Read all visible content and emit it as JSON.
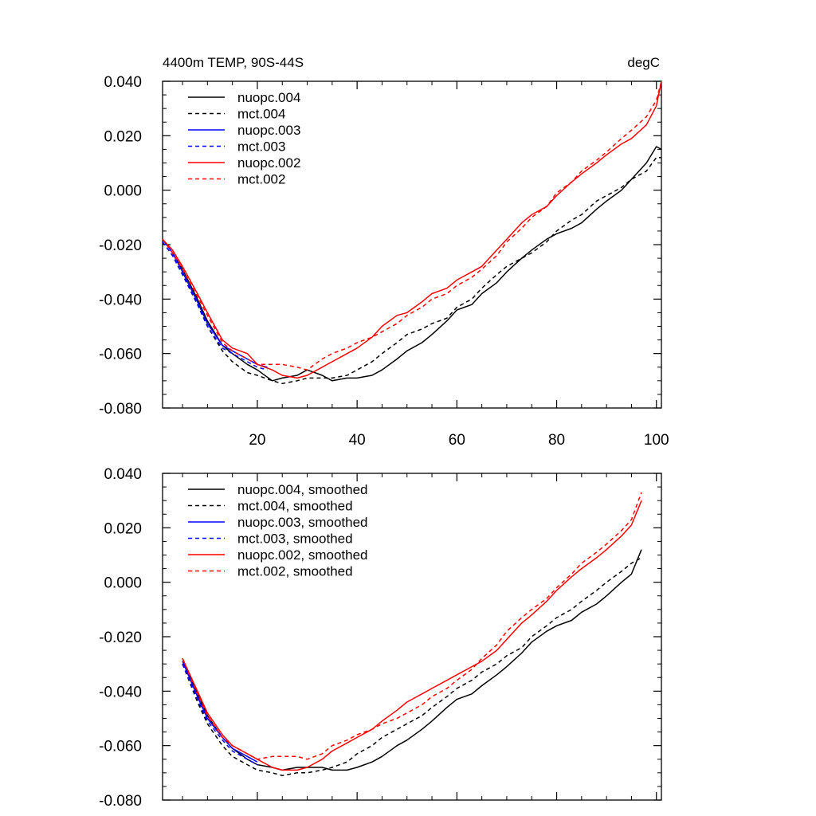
{
  "title_left": "4400m TEMP, 90S-44S",
  "title_right": "degC",
  "y_ticks": [
    "0.040",
    "0.020",
    "0.000",
    "-0.020",
    "-0.040",
    "-0.060",
    "-0.080"
  ],
  "x_ticks": [
    "20",
    "40",
    "60",
    "80",
    "100"
  ],
  "chart_data": [
    {
      "type": "line",
      "title": "4400m TEMP, 90S-44S",
      "unit": "degC",
      "xlim": [
        1,
        101
      ],
      "ylim": [
        -0.08,
        0.04
      ],
      "legend_position": "top-left",
      "series": [
        {
          "name": "nuopc.004",
          "color": "#000000",
          "dash": "solid",
          "x": [
            1,
            3,
            5,
            8,
            10,
            13,
            15,
            18,
            20,
            23,
            25,
            28,
            30,
            33,
            35,
            38,
            40,
            43,
            45,
            48,
            50,
            53,
            55,
            58,
            60,
            63,
            65,
            68,
            70,
            73,
            75,
            78,
            80,
            83,
            85,
            88,
            90,
            93,
            95,
            98,
            100,
            101
          ],
          "y": [
            -0.018,
            -0.023,
            -0.029,
            -0.04,
            -0.048,
            -0.057,
            -0.06,
            -0.064,
            -0.066,
            -0.07,
            -0.069,
            -0.068,
            -0.066,
            -0.068,
            -0.07,
            -0.069,
            -0.069,
            -0.068,
            -0.066,
            -0.062,
            -0.059,
            -0.056,
            -0.053,
            -0.048,
            -0.044,
            -0.042,
            -0.038,
            -0.034,
            -0.03,
            -0.025,
            -0.022,
            -0.018,
            -0.016,
            -0.014,
            -0.012,
            -0.007,
            -0.004,
            0.0,
            0.004,
            0.01,
            0.016,
            0.015
          ]
        },
        {
          "name": "mct.004",
          "color": "#000000",
          "dash": "dashed",
          "x": [
            1,
            3,
            5,
            8,
            10,
            13,
            15,
            18,
            20,
            23,
            25,
            28,
            30,
            33,
            35,
            38,
            40,
            43,
            45,
            48,
            50,
            53,
            55,
            58,
            60,
            63,
            65,
            68,
            70,
            73,
            75,
            78,
            80,
            83,
            85,
            88,
            90,
            93,
            95,
            98,
            100,
            101
          ],
          "y": [
            -0.019,
            -0.024,
            -0.031,
            -0.042,
            -0.05,
            -0.059,
            -0.063,
            -0.067,
            -0.068,
            -0.07,
            -0.071,
            -0.07,
            -0.069,
            -0.069,
            -0.069,
            -0.068,
            -0.066,
            -0.063,
            -0.06,
            -0.056,
            -0.053,
            -0.051,
            -0.049,
            -0.047,
            -0.043,
            -0.04,
            -0.036,
            -0.031,
            -0.028,
            -0.025,
            -0.023,
            -0.019,
            -0.015,
            -0.011,
            -0.009,
            -0.004,
            -0.002,
            0.001,
            0.004,
            0.007,
            0.012,
            0.012
          ]
        },
        {
          "name": "nuopc.003",
          "color": "#0000ff",
          "dash": "solid",
          "x": [
            1,
            3,
            5,
            8,
            10,
            13,
            15,
            18,
            20,
            22
          ],
          "y": [
            -0.018,
            -0.023,
            -0.03,
            -0.041,
            -0.049,
            -0.057,
            -0.059,
            -0.062,
            -0.064,
            -0.065
          ]
        },
        {
          "name": "mct.003",
          "color": "#0000ff",
          "dash": "dashed",
          "x": [
            1,
            3,
            5,
            8,
            10,
            13,
            15,
            18,
            20,
            22
          ],
          "y": [
            -0.019,
            -0.024,
            -0.031,
            -0.042,
            -0.05,
            -0.058,
            -0.06,
            -0.063,
            -0.065,
            -0.066
          ]
        },
        {
          "name": "nuopc.002",
          "color": "#ff0000",
          "dash": "solid",
          "x": [
            1,
            3,
            5,
            8,
            10,
            13,
            15,
            18,
            20,
            23,
            25,
            28,
            30,
            33,
            35,
            38,
            40,
            43,
            45,
            48,
            50,
            53,
            55,
            58,
            60,
            63,
            65,
            68,
            70,
            73,
            75,
            78,
            80,
            83,
            85,
            88,
            90,
            93,
            95,
            98,
            100,
            101
          ],
          "y": [
            -0.018,
            -0.022,
            -0.028,
            -0.038,
            -0.045,
            -0.055,
            -0.058,
            -0.06,
            -0.064,
            -0.066,
            -0.068,
            -0.069,
            -0.068,
            -0.065,
            -0.063,
            -0.06,
            -0.058,
            -0.054,
            -0.05,
            -0.046,
            -0.045,
            -0.041,
            -0.038,
            -0.036,
            -0.033,
            -0.03,
            -0.028,
            -0.022,
            -0.018,
            -0.012,
            -0.009,
            -0.006,
            -0.002,
            0.003,
            0.006,
            0.01,
            0.013,
            0.017,
            0.019,
            0.024,
            0.031,
            0.04
          ]
        },
        {
          "name": "mct.002",
          "color": "#ff0000",
          "dash": "dashed",
          "x": [
            1,
            3,
            5,
            8,
            10,
            13,
            15,
            18,
            20,
            23,
            25,
            28,
            30,
            33,
            35,
            38,
            40,
            43,
            45,
            48,
            50,
            53,
            55,
            58,
            60,
            63,
            65,
            68,
            70,
            73,
            75,
            78,
            80,
            83,
            85,
            88,
            90,
            93,
            95,
            98,
            100,
            101
          ],
          "y": [
            -0.018,
            -0.023,
            -0.029,
            -0.039,
            -0.046,
            -0.056,
            -0.059,
            -0.062,
            -0.064,
            -0.064,
            -0.064,
            -0.065,
            -0.066,
            -0.062,
            -0.06,
            -0.058,
            -0.056,
            -0.054,
            -0.052,
            -0.049,
            -0.046,
            -0.043,
            -0.04,
            -0.038,
            -0.035,
            -0.032,
            -0.029,
            -0.024,
            -0.019,
            -0.014,
            -0.01,
            -0.006,
            -0.001,
            0.003,
            0.007,
            0.011,
            0.014,
            0.019,
            0.022,
            0.027,
            0.033,
            0.04
          ]
        }
      ]
    },
    {
      "type": "line",
      "xlim": [
        1,
        101
      ],
      "ylim": [
        -0.08,
        0.04
      ],
      "legend_position": "top-left",
      "series": [
        {
          "name": "nuopc.004, smoothed",
          "color": "#000000",
          "dash": "solid",
          "x": [
            5,
            8,
            10,
            13,
            15,
            18,
            20,
            23,
            25,
            28,
            30,
            33,
            35,
            38,
            40,
            43,
            45,
            48,
            50,
            53,
            55,
            58,
            60,
            63,
            65,
            68,
            70,
            73,
            75,
            78,
            80,
            83,
            85,
            88,
            90,
            93,
            95,
            97
          ],
          "y": [
            -0.028,
            -0.041,
            -0.049,
            -0.057,
            -0.061,
            -0.065,
            -0.067,
            -0.068,
            -0.069,
            -0.068,
            -0.068,
            -0.068,
            -0.069,
            -0.069,
            -0.068,
            -0.066,
            -0.064,
            -0.06,
            -0.058,
            -0.054,
            -0.051,
            -0.046,
            -0.043,
            -0.041,
            -0.038,
            -0.034,
            -0.031,
            -0.026,
            -0.022,
            -0.018,
            -0.016,
            -0.014,
            -0.011,
            -0.008,
            -0.005,
            0.0,
            0.003,
            0.012
          ]
        },
        {
          "name": "mct.004, smoothed",
          "color": "#000000",
          "dash": "dashed",
          "x": [
            5,
            8,
            10,
            13,
            15,
            18,
            20,
            23,
            25,
            28,
            30,
            33,
            35,
            38,
            40,
            43,
            45,
            48,
            50,
            53,
            55,
            58,
            60,
            63,
            65,
            68,
            70,
            73,
            75,
            78,
            80,
            83,
            85,
            88,
            90,
            93,
            95,
            97
          ],
          "y": [
            -0.03,
            -0.044,
            -0.052,
            -0.06,
            -0.064,
            -0.067,
            -0.069,
            -0.07,
            -0.071,
            -0.07,
            -0.07,
            -0.069,
            -0.068,
            -0.066,
            -0.063,
            -0.06,
            -0.057,
            -0.054,
            -0.052,
            -0.049,
            -0.046,
            -0.042,
            -0.039,
            -0.036,
            -0.033,
            -0.03,
            -0.027,
            -0.024,
            -0.02,
            -0.016,
            -0.013,
            -0.01,
            -0.007,
            -0.003,
            0.0,
            0.004,
            0.007,
            0.009
          ]
        },
        {
          "name": "nuopc.003, smoothed",
          "color": "#0000ff",
          "dash": "solid",
          "x": [
            5,
            8,
            10,
            13,
            15,
            18,
            20
          ],
          "y": [
            -0.029,
            -0.042,
            -0.05,
            -0.057,
            -0.061,
            -0.064,
            -0.066
          ]
        },
        {
          "name": "mct.003, smoothed",
          "color": "#0000ff",
          "dash": "dashed",
          "x": [
            5,
            8,
            10,
            13,
            15,
            18,
            20
          ],
          "y": [
            -0.03,
            -0.043,
            -0.051,
            -0.058,
            -0.062,
            -0.065,
            -0.067
          ]
        },
        {
          "name": "nuopc.002, smoothed",
          "color": "#ff0000",
          "dash": "solid",
          "x": [
            5,
            8,
            10,
            13,
            15,
            18,
            20,
            23,
            25,
            28,
            30,
            33,
            35,
            38,
            40,
            43,
            45,
            48,
            50,
            53,
            55,
            58,
            60,
            63,
            65,
            68,
            70,
            73,
            75,
            78,
            80,
            83,
            85,
            88,
            90,
            93,
            95,
            97
          ],
          "y": [
            -0.028,
            -0.04,
            -0.048,
            -0.056,
            -0.06,
            -0.063,
            -0.065,
            -0.068,
            -0.069,
            -0.069,
            -0.068,
            -0.065,
            -0.062,
            -0.059,
            -0.057,
            -0.054,
            -0.051,
            -0.047,
            -0.044,
            -0.041,
            -0.039,
            -0.036,
            -0.034,
            -0.031,
            -0.029,
            -0.025,
            -0.021,
            -0.015,
            -0.012,
            -0.007,
            -0.003,
            0.002,
            0.005,
            0.009,
            0.012,
            0.017,
            0.021,
            0.03
          ]
        },
        {
          "name": "mct.002, smoothed",
          "color": "#ff0000",
          "dash": "dashed",
          "x": [
            5,
            8,
            10,
            13,
            15,
            18,
            20,
            23,
            25,
            28,
            30,
            33,
            35,
            38,
            40,
            43,
            45,
            48,
            50,
            53,
            55,
            58,
            60,
            63,
            65,
            68,
            70,
            73,
            75,
            78,
            80,
            83,
            85,
            88,
            90,
            93,
            95,
            97
          ],
          "y": [
            -0.028,
            -0.041,
            -0.049,
            -0.057,
            -0.06,
            -0.063,
            -0.065,
            -0.064,
            -0.064,
            -0.064,
            -0.065,
            -0.063,
            -0.06,
            -0.058,
            -0.056,
            -0.054,
            -0.052,
            -0.05,
            -0.048,
            -0.045,
            -0.042,
            -0.039,
            -0.036,
            -0.032,
            -0.028,
            -0.023,
            -0.018,
            -0.013,
            -0.01,
            -0.006,
            -0.002,
            0.003,
            0.007,
            0.011,
            0.014,
            0.019,
            0.023,
            0.033
          ]
        }
      ]
    }
  ]
}
